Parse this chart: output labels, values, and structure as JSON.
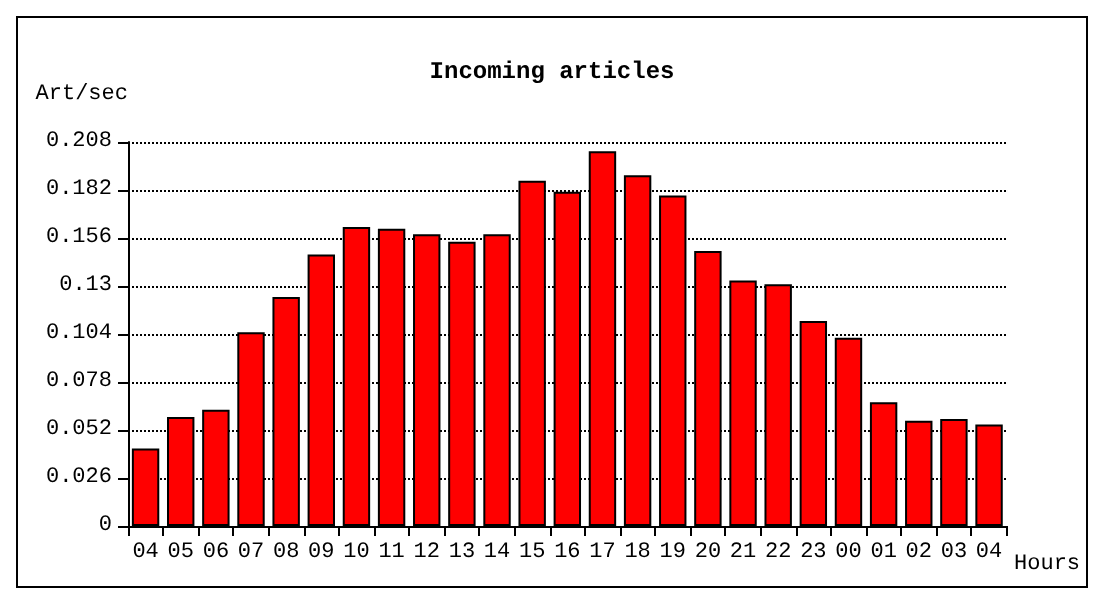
{
  "chart_data": {
    "type": "bar",
    "title": "Incoming articles",
    "ylabel": "Art/sec",
    "xlabel": "Hours",
    "categories": [
      "04",
      "05",
      "06",
      "07",
      "08",
      "09",
      "10",
      "11",
      "12",
      "13",
      "14",
      "15",
      "16",
      "17",
      "18",
      "19",
      "20",
      "21",
      "22",
      "23",
      "00",
      "01",
      "02",
      "03",
      "04"
    ],
    "values": [
      0.042,
      0.059,
      0.063,
      0.105,
      0.124,
      0.147,
      0.162,
      0.161,
      0.158,
      0.154,
      0.158,
      0.187,
      0.181,
      0.203,
      0.19,
      0.179,
      0.149,
      0.133,
      0.131,
      0.111,
      0.102,
      0.067,
      0.057,
      0.058,
      0.055
    ],
    "color": "#ff0000",
    "ylim": [
      0,
      0.208
    ],
    "yticks": [
      0,
      0.026,
      0.052,
      0.078,
      0.104,
      0.13,
      0.156,
      0.182,
      0.208
    ],
    "grid": "y",
    "line_style": "dotted"
  }
}
